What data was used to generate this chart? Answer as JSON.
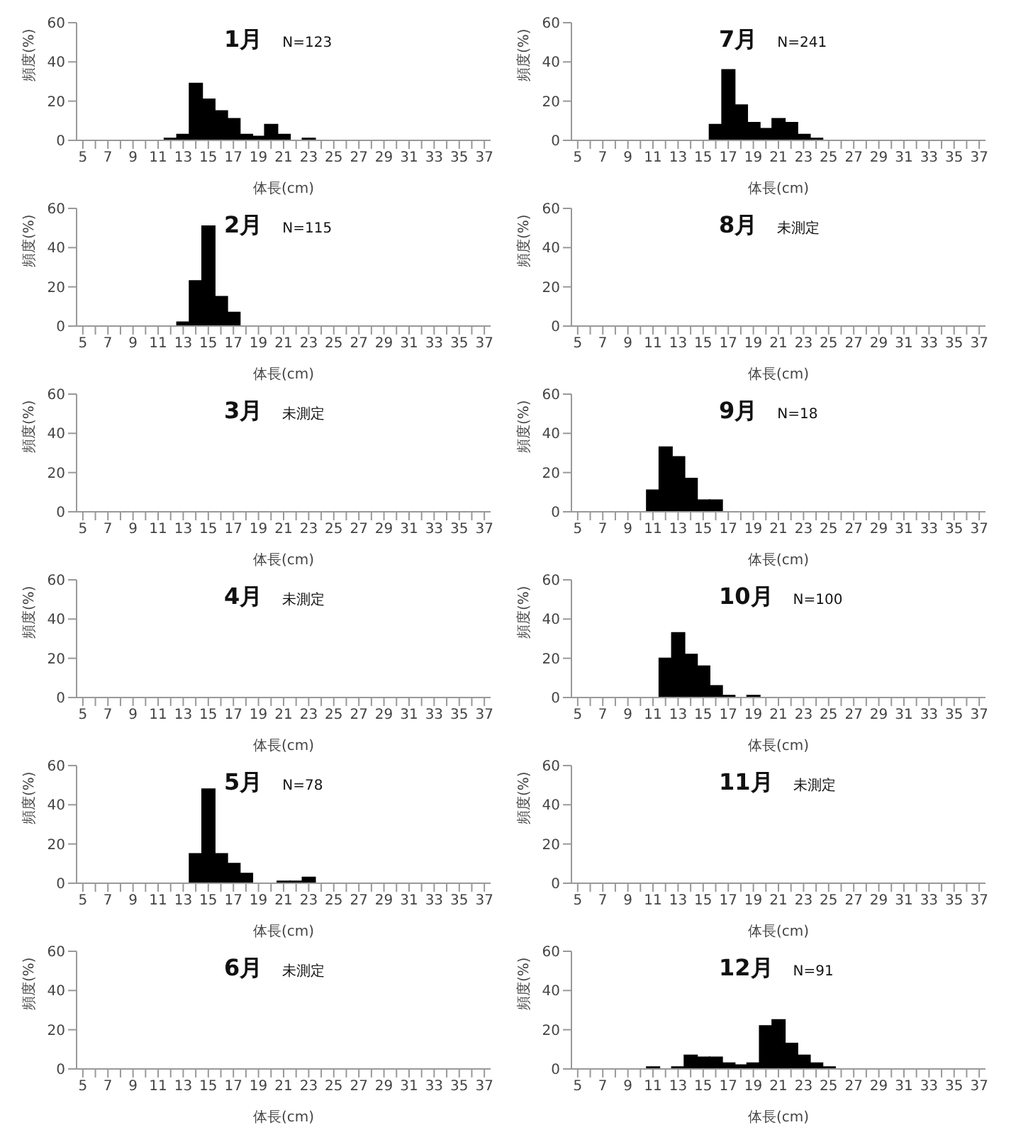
{
  "chart_data": [
    {
      "type": "bar",
      "title": "1月",
      "annotations": [
        "N=123"
      ],
      "xlabel": "体長(cm)",
      "ylabel": "頻度(%)",
      "ylim": [
        0,
        60
      ],
      "yticks": [
        0,
        20,
        40,
        60
      ],
      "color": "#000000",
      "categories": [
        "5",
        null,
        "7",
        null,
        "9",
        null,
        "11",
        null,
        "13",
        null,
        "15",
        null,
        "17",
        null,
        "19",
        null,
        "21",
        null,
        "23",
        null,
        "25",
        null,
        "27",
        null,
        "29",
        null,
        "31",
        null,
        "33",
        null,
        "35",
        null,
        "37"
      ],
      "values": [
        0,
        0,
        0,
        0,
        0,
        0,
        0,
        1,
        3,
        29,
        21,
        15,
        11,
        3,
        2,
        8,
        3,
        0,
        1,
        0,
        0,
        0,
        0,
        0,
        0,
        0,
        0,
        0,
        0,
        0,
        0,
        0,
        0
      ]
    },
    {
      "type": "bar",
      "title": "7月",
      "annotations": [
        "N=241"
      ],
      "xlabel": "体長(cm)",
      "ylabel": "頻度(%)",
      "ylim": [
        0,
        60
      ],
      "yticks": [
        0,
        20,
        40,
        60
      ],
      "color": "#000000",
      "categories": [
        "5",
        null,
        "7",
        null,
        "9",
        null,
        "11",
        null,
        "13",
        null,
        "15",
        null,
        "17",
        null,
        "19",
        null,
        "21",
        null,
        "23",
        null,
        "25",
        null,
        "27",
        null,
        "29",
        null,
        "31",
        null,
        "33",
        null,
        "35",
        null,
        "37"
      ],
      "values": [
        0,
        0,
        0,
        0,
        0,
        0,
        0,
        0,
        0,
        0,
        0,
        8,
        36,
        18,
        9,
        6,
        11,
        9,
        3,
        1,
        0,
        0,
        0,
        0,
        0,
        0,
        0,
        0,
        0,
        0,
        0,
        0,
        0
      ]
    },
    {
      "type": "bar",
      "title": "2月",
      "annotations": [
        "N=115"
      ],
      "xlabel": "体長(cm)",
      "ylabel": "頻度(%)",
      "ylim": [
        0,
        60
      ],
      "yticks": [
        0,
        20,
        40,
        60
      ],
      "color": "#000000",
      "categories": [
        "5",
        null,
        "7",
        null,
        "9",
        null,
        "11",
        null,
        "13",
        null,
        "15",
        null,
        "17",
        null,
        "19",
        null,
        "21",
        null,
        "23",
        null,
        "25",
        null,
        "27",
        null,
        "29",
        null,
        "31",
        null,
        "33",
        null,
        "35",
        null,
        "37"
      ],
      "values": [
        0,
        0,
        0,
        0,
        0,
        0,
        0,
        0,
        2,
        23,
        51,
        15,
        7,
        0,
        0,
        0,
        0,
        0,
        0,
        0,
        0,
        0,
        0,
        0,
        0,
        0,
        0,
        0,
        0,
        0,
        0,
        0,
        0
      ]
    },
    {
      "type": "bar",
      "title": "8月",
      "annotations": [
        "未測定"
      ],
      "xlabel": "体長(cm)",
      "ylabel": "頻度(%)",
      "ylim": [
        0,
        60
      ],
      "yticks": [
        0,
        20,
        40,
        60
      ],
      "color": "#000000",
      "categories": [
        "5",
        null,
        "7",
        null,
        "9",
        null,
        "11",
        null,
        "13",
        null,
        "15",
        null,
        "17",
        null,
        "19",
        null,
        "21",
        null,
        "23",
        null,
        "25",
        null,
        "27",
        null,
        "29",
        null,
        "31",
        null,
        "33",
        null,
        "35",
        null,
        "37"
      ],
      "values": [
        null,
        null,
        null,
        null,
        null,
        null,
        null,
        null,
        null,
        null,
        null,
        null,
        null,
        null,
        null,
        null,
        null,
        null,
        null,
        null,
        null,
        null,
        null,
        null,
        null,
        null,
        null,
        null,
        null,
        null,
        null,
        null,
        null
      ]
    },
    {
      "type": "bar",
      "title": "3月",
      "annotations": [
        "未測定"
      ],
      "xlabel": "体長(cm)",
      "ylabel": "頻度(%)",
      "ylim": [
        0,
        60
      ],
      "yticks": [
        0,
        20,
        40,
        60
      ],
      "color": "#000000",
      "categories": [
        "5",
        null,
        "7",
        null,
        "9",
        null,
        "11",
        null,
        "13",
        null,
        "15",
        null,
        "17",
        null,
        "19",
        null,
        "21",
        null,
        "23",
        null,
        "25",
        null,
        "27",
        null,
        "29",
        null,
        "31",
        null,
        "33",
        null,
        "35",
        null,
        "37"
      ],
      "values": [
        null,
        null,
        null,
        null,
        null,
        null,
        null,
        null,
        null,
        null,
        null,
        null,
        null,
        null,
        null,
        null,
        null,
        null,
        null,
        null,
        null,
        null,
        null,
        null,
        null,
        null,
        null,
        null,
        null,
        null,
        null,
        null,
        null
      ]
    },
    {
      "type": "bar",
      "title": "9月",
      "annotations": [
        "N=18"
      ],
      "xlabel": "体長(cm)",
      "ylabel": "頻度(%)",
      "ylim": [
        0,
        60
      ],
      "yticks": [
        0,
        20,
        40,
        60
      ],
      "color": "#000000",
      "categories": [
        "5",
        null,
        "7",
        null,
        "9",
        null,
        "11",
        null,
        "13",
        null,
        "15",
        null,
        "17",
        null,
        "19",
        null,
        "21",
        null,
        "23",
        null,
        "25",
        null,
        "27",
        null,
        "29",
        null,
        "31",
        null,
        "33",
        null,
        "35",
        null,
        "37"
      ],
      "values": [
        0,
        0,
        0,
        0,
        0,
        0,
        11,
        33,
        28,
        17,
        6,
        6,
        0,
        0,
        0,
        0,
        0,
        0,
        0,
        0,
        0,
        0,
        0,
        0,
        0,
        0,
        0,
        0,
        0,
        0,
        0,
        0,
        0
      ]
    },
    {
      "type": "bar",
      "title": "4月",
      "annotations": [
        "未測定"
      ],
      "xlabel": "体長(cm)",
      "ylabel": "頻度(%)",
      "ylim": [
        0,
        60
      ],
      "yticks": [
        0,
        20,
        40,
        60
      ],
      "color": "#000000",
      "categories": [
        "5",
        null,
        "7",
        null,
        "9",
        null,
        "11",
        null,
        "13",
        null,
        "15",
        null,
        "17",
        null,
        "19",
        null,
        "21",
        null,
        "23",
        null,
        "25",
        null,
        "27",
        null,
        "29",
        null,
        "31",
        null,
        "33",
        null,
        "35",
        null,
        "37"
      ],
      "values": [
        null,
        null,
        null,
        null,
        null,
        null,
        null,
        null,
        null,
        null,
        null,
        null,
        null,
        null,
        null,
        null,
        null,
        null,
        null,
        null,
        null,
        null,
        null,
        null,
        null,
        null,
        null,
        null,
        null,
        null,
        null,
        null,
        null
      ]
    },
    {
      "type": "bar",
      "title": "10月",
      "annotations": [
        "N=100"
      ],
      "xlabel": "体長(cm)",
      "ylabel": "頻度(%)",
      "ylim": [
        0,
        60
      ],
      "yticks": [
        0,
        20,
        40,
        60
      ],
      "color": "#000000",
      "categories": [
        "5",
        null,
        "7",
        null,
        "9",
        null,
        "11",
        null,
        "13",
        null,
        "15",
        null,
        "17",
        null,
        "19",
        null,
        "21",
        null,
        "23",
        null,
        "25",
        null,
        "27",
        null,
        "29",
        null,
        "31",
        null,
        "33",
        null,
        "35",
        null,
        "37"
      ],
      "values": [
        0,
        0,
        0,
        0,
        0,
        0,
        0,
        20,
        33,
        22,
        16,
        6,
        1,
        0,
        1,
        0,
        0,
        0,
        0,
        0,
        0,
        0,
        0,
        0,
        0,
        0,
        0,
        0,
        0,
        0,
        0,
        0,
        0
      ]
    },
    {
      "type": "bar",
      "title": "5月",
      "annotations": [
        "N=78"
      ],
      "xlabel": "体長(cm)",
      "ylabel": "頻度(%)",
      "ylim": [
        0,
        60
      ],
      "yticks": [
        0,
        20,
        40,
        60
      ],
      "color": "#000000",
      "categories": [
        "5",
        null,
        "7",
        null,
        "9",
        null,
        "11",
        null,
        "13",
        null,
        "15",
        null,
        "17",
        null,
        "19",
        null,
        "21",
        null,
        "23",
        null,
        "25",
        null,
        "27",
        null,
        "29",
        null,
        "31",
        null,
        "33",
        null,
        "35",
        null,
        "37"
      ],
      "values": [
        0,
        0,
        0,
        0,
        0,
        0,
        0,
        0,
        0,
        15,
        48,
        15,
        10,
        5,
        0,
        0,
        1,
        1,
        3,
        0,
        0,
        0,
        0,
        0,
        0,
        0,
        0,
        0,
        0,
        0,
        0,
        0,
        0
      ]
    },
    {
      "type": "bar",
      "title": "11月",
      "annotations": [
        "未測定"
      ],
      "xlabel": "体長(cm)",
      "ylabel": "頻度(%)",
      "ylim": [
        0,
        60
      ],
      "yticks": [
        0,
        20,
        40,
        60
      ],
      "color": "#000000",
      "categories": [
        "5",
        null,
        "7",
        null,
        "9",
        null,
        "11",
        null,
        "13",
        null,
        "15",
        null,
        "17",
        null,
        "19",
        null,
        "21",
        null,
        "23",
        null,
        "25",
        null,
        "27",
        null,
        "29",
        null,
        "31",
        null,
        "33",
        null,
        "35",
        null,
        "37"
      ],
      "values": [
        null,
        null,
        null,
        null,
        null,
        null,
        null,
        null,
        null,
        null,
        null,
        null,
        null,
        null,
        null,
        null,
        null,
        null,
        null,
        null,
        null,
        null,
        null,
        null,
        null,
        null,
        null,
        null,
        null,
        null,
        null,
        null,
        null
      ]
    },
    {
      "type": "bar",
      "title": "6月",
      "annotations": [
        "未測定"
      ],
      "xlabel": "体長(cm)",
      "ylabel": "頻度(%)",
      "ylim": [
        0,
        60
      ],
      "yticks": [
        0,
        20,
        40,
        60
      ],
      "color": "#000000",
      "categories": [
        "5",
        null,
        "7",
        null,
        "9",
        null,
        "11",
        null,
        "13",
        null,
        "15",
        null,
        "17",
        null,
        "19",
        null,
        "21",
        null,
        "23",
        null,
        "25",
        null,
        "27",
        null,
        "29",
        null,
        "31",
        null,
        "33",
        null,
        "35",
        null,
        "37"
      ],
      "values": [
        null,
        null,
        null,
        null,
        null,
        null,
        null,
        null,
        null,
        null,
        null,
        null,
        null,
        null,
        null,
        null,
        null,
        null,
        null,
        null,
        null,
        null,
        null,
        null,
        null,
        null,
        null,
        null,
        null,
        null,
        null,
        null,
        null
      ]
    },
    {
      "type": "bar",
      "title": "12月",
      "annotations": [
        "N=91"
      ],
      "xlabel": "体長(cm)",
      "ylabel": "頻度(%)",
      "ylim": [
        0,
        60
      ],
      "yticks": [
        0,
        20,
        40,
        60
      ],
      "color": "#000000",
      "categories": [
        "5",
        null,
        "7",
        null,
        "9",
        null,
        "11",
        null,
        "13",
        null,
        "15",
        null,
        "17",
        null,
        "19",
        null,
        "21",
        null,
        "23",
        null,
        "25",
        null,
        "27",
        null,
        "29",
        null,
        "31",
        null,
        "33",
        null,
        "35",
        null,
        "37"
      ],
      "values": [
        0,
        0,
        0,
        0,
        0,
        0,
        1,
        0,
        1,
        7,
        6,
        6,
        3,
        2,
        3,
        22,
        25,
        13,
        7,
        3,
        1,
        0,
        0,
        0,
        0,
        0,
        0,
        0,
        0,
        0,
        0,
        0,
        0
      ]
    }
  ]
}
